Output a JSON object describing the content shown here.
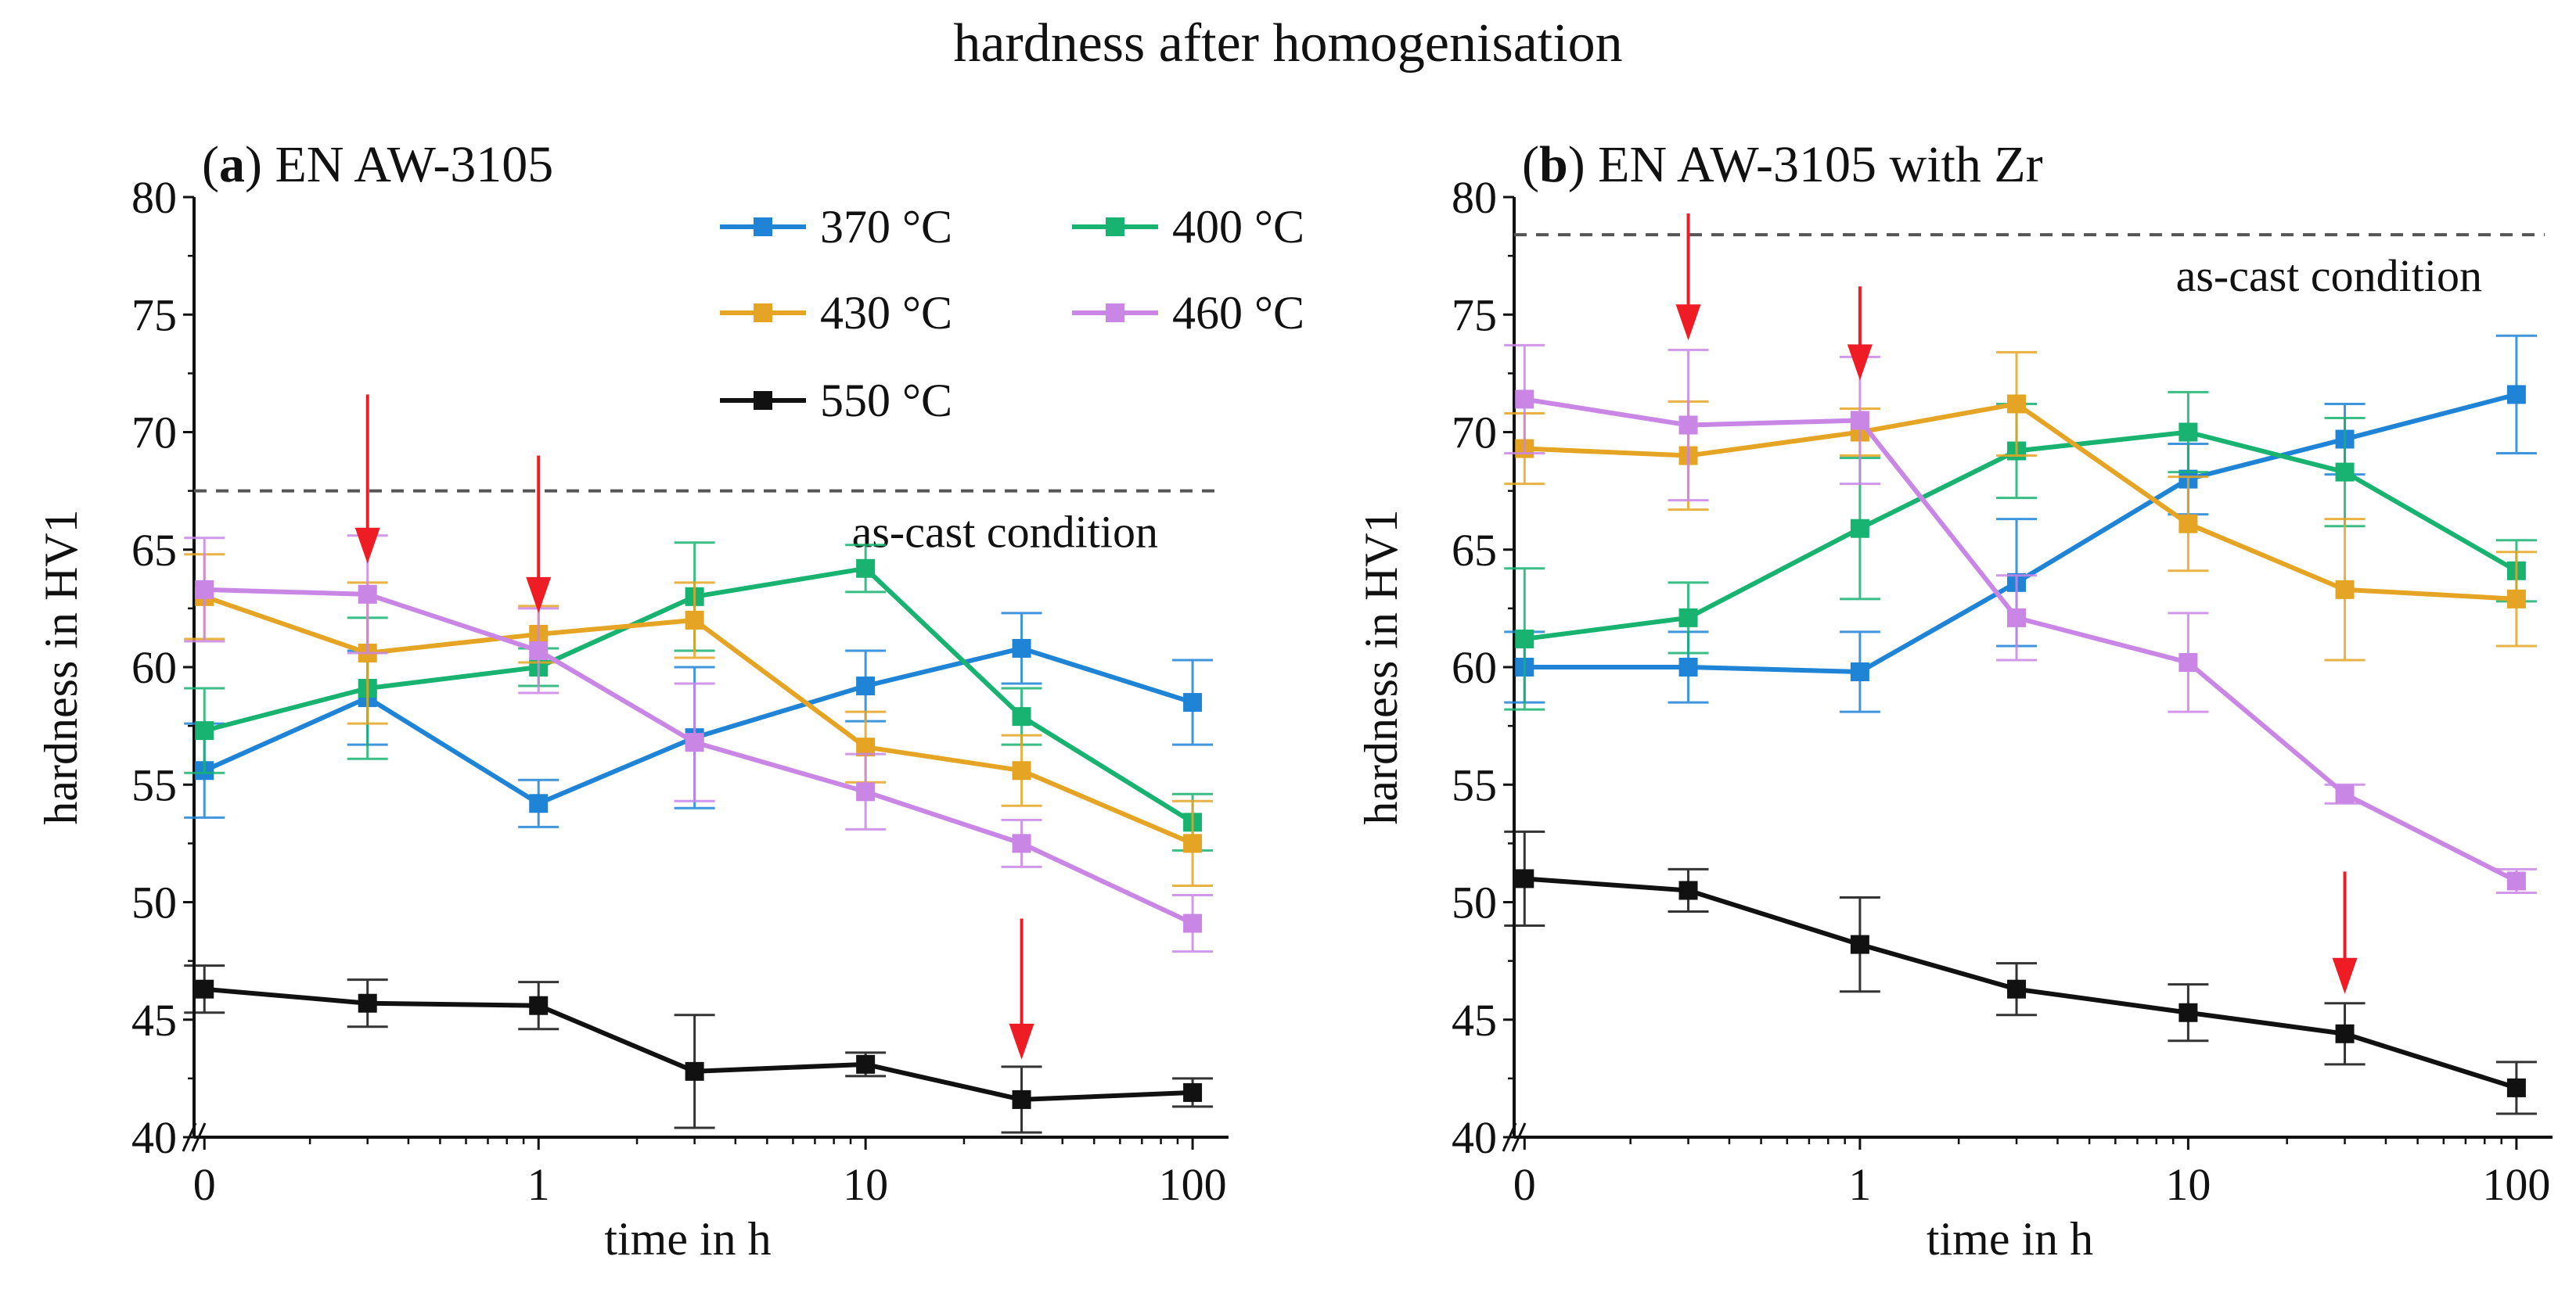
{
  "figure_title": "hardness after homogenisation",
  "chart_data": [
    {
      "type": "line",
      "panel_letter": "a",
      "title": "EN AW-3105",
      "xlabel": "time in h",
      "ylabel": "hardness in HV1",
      "xscale": "log-with-zero (broken axis)",
      "xticks": [
        0,
        1,
        10,
        100
      ],
      "xtick_labels": [
        "0",
        "1",
        "10",
        "100"
      ],
      "yticks": [
        40,
        45,
        50,
        55,
        60,
        65,
        70,
        75,
        80
      ],
      "ytick_labels": [
        "40",
        "45",
        "50",
        "55",
        "60",
        "65",
        "70",
        "75",
        "80"
      ],
      "ylim": [
        40,
        80
      ],
      "x": [
        0,
        0.3,
        1,
        3,
        10,
        30,
        100
      ],
      "reference_line": {
        "label": "as-cast condition",
        "value": 67.5
      },
      "arrows_at_x": [
        0.3,
        1,
        30
      ],
      "legend_position": "top-right",
      "series": [
        {
          "name": "370 °C",
          "color": "#1f84d6",
          "values": [
            55.6,
            58.7,
            54.2,
            57.0,
            59.2,
            60.8,
            58.5
          ],
          "errors": [
            2.0,
            2.0,
            1.0,
            3.0,
            1.5,
            1.5,
            1.8
          ]
        },
        {
          "name": "400 °C",
          "color": "#18b271",
          "values": [
            57.3,
            59.1,
            60.0,
            63.0,
            64.2,
            57.9,
            53.4
          ],
          "errors": [
            1.8,
            3.0,
            0.8,
            2.3,
            1.0,
            1.2,
            1.2
          ]
        },
        {
          "name": "430 °C",
          "color": "#e5a423",
          "values": [
            63.0,
            60.6,
            61.4,
            62.0,
            56.6,
            55.6,
            52.5
          ],
          "errors": [
            1.8,
            3.0,
            1.2,
            1.6,
            1.5,
            1.5,
            1.8
          ]
        },
        {
          "name": "460 °C",
          "color": "#c986e5",
          "values": [
            63.3,
            63.1,
            60.7,
            56.8,
            54.7,
            52.5,
            49.1
          ],
          "errors": [
            2.2,
            2.5,
            1.8,
            2.5,
            1.6,
            1.0,
            1.2
          ]
        },
        {
          "name": "550 °C",
          "color": "#111111",
          "values": [
            46.3,
            45.7,
            45.6,
            42.8,
            43.1,
            41.6,
            41.9
          ],
          "errors": [
            1.0,
            1.0,
            1.0,
            2.4,
            0.5,
            1.4,
            0.6
          ]
        }
      ]
    },
    {
      "type": "line",
      "panel_letter": "b",
      "title": "EN AW-3105 with Zr",
      "xlabel": "time in h",
      "ylabel": "hardness in HV1",
      "xscale": "log-with-zero (broken axis)",
      "xticks": [
        0,
        1,
        10,
        100
      ],
      "xtick_labels": [
        "0",
        "1",
        "10",
        "100"
      ],
      "yticks": [
        40,
        45,
        50,
        55,
        60,
        65,
        70,
        75,
        80
      ],
      "ytick_labels": [
        "40",
        "45",
        "50",
        "55",
        "60",
        "65",
        "70",
        "75",
        "80"
      ],
      "ylim": [
        40,
        80
      ],
      "x": [
        0,
        0.3,
        1,
        3,
        10,
        30,
        100
      ],
      "reference_line": {
        "label": "as-cast condition",
        "value": 78.4
      },
      "arrows_at_x": [
        0.3,
        1,
        30
      ],
      "series": [
        {
          "name": "370 °C",
          "color": "#1f84d6",
          "values": [
            60.0,
            60.0,
            59.8,
            63.6,
            68.0,
            69.7,
            71.6
          ],
          "errors": [
            1.5,
            1.5,
            1.7,
            2.7,
            1.5,
            1.5,
            2.5
          ]
        },
        {
          "name": "400 °C",
          "color": "#18b271",
          "values": [
            61.2,
            62.1,
            65.9,
            69.2,
            70.0,
            68.3,
            64.1
          ],
          "errors": [
            3.0,
            1.5,
            3.0,
            2.0,
            1.7,
            2.3,
            1.3
          ]
        },
        {
          "name": "430 °C",
          "color": "#e5a423",
          "values": [
            69.3,
            69.0,
            70.0,
            71.2,
            66.1,
            63.3,
            62.9
          ],
          "errors": [
            1.5,
            2.3,
            1.0,
            2.2,
            2.0,
            3.0,
            2.0
          ]
        },
        {
          "name": "460 °C",
          "color": "#c986e5",
          "values": [
            71.4,
            70.3,
            70.5,
            62.1,
            60.2,
            54.6,
            50.9
          ],
          "errors": [
            2.3,
            3.2,
            2.7,
            1.8,
            2.1,
            0.4,
            0.5
          ]
        },
        {
          "name": "550 °C",
          "color": "#111111",
          "values": [
            51.0,
            50.5,
            48.2,
            46.3,
            45.3,
            44.4,
            42.1
          ],
          "errors": [
            2.0,
            0.9,
            2.0,
            1.1,
            1.2,
            1.3,
            1.1
          ]
        }
      ]
    }
  ]
}
